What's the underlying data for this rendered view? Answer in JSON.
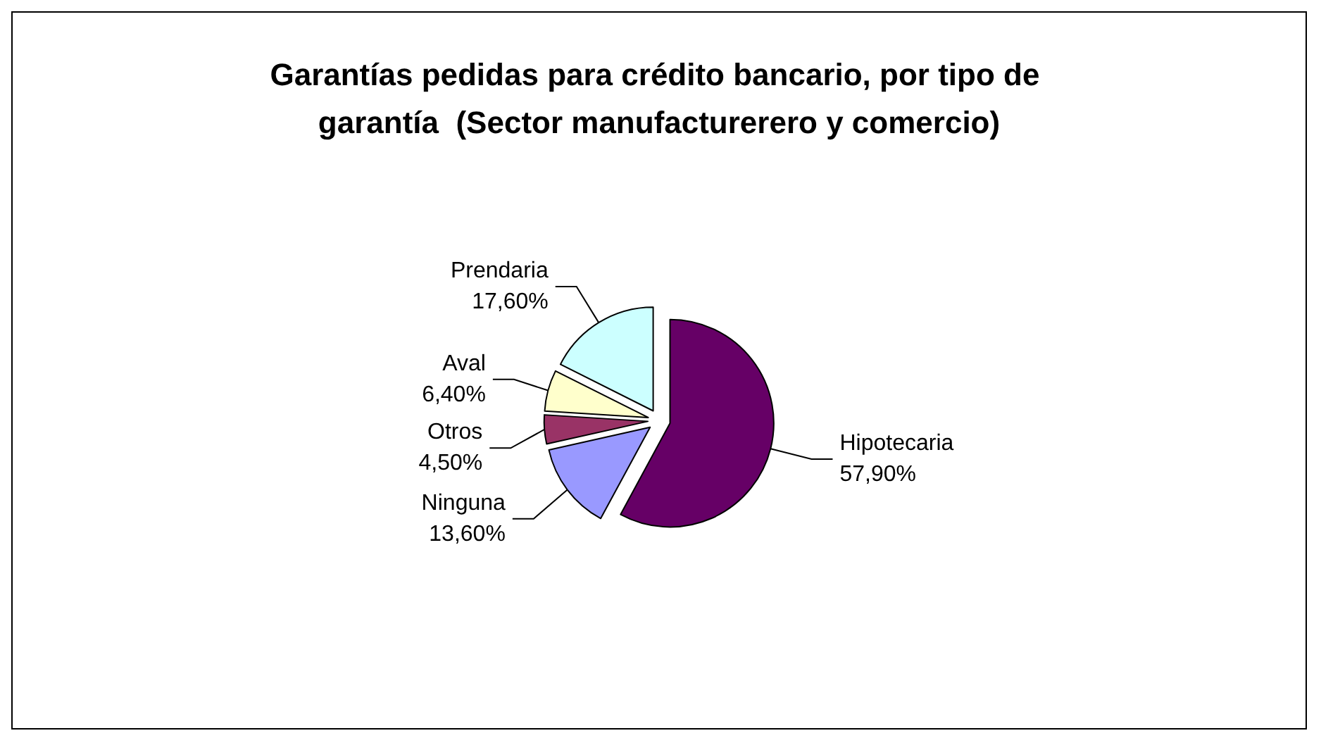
{
  "chart_data": {
    "type": "pie",
    "title": "Garantías pedidas para crédito bancario, por tipo de garantía  (Sector manufacturerero y comercio)",
    "categories": [
      "Hipotecaria",
      "Ninguna",
      "Otros",
      "Aval",
      "Prendaria"
    ],
    "values": [
      57.9,
      13.6,
      4.5,
      6.4,
      17.6
    ],
    "value_labels": [
      "57,90%",
      "13,60%",
      "4,50%",
      "6,40%",
      "17,60%"
    ],
    "colors": [
      "#660066",
      "#9999ff",
      "#993366",
      "#ffffcc",
      "#ccffff"
    ]
  }
}
